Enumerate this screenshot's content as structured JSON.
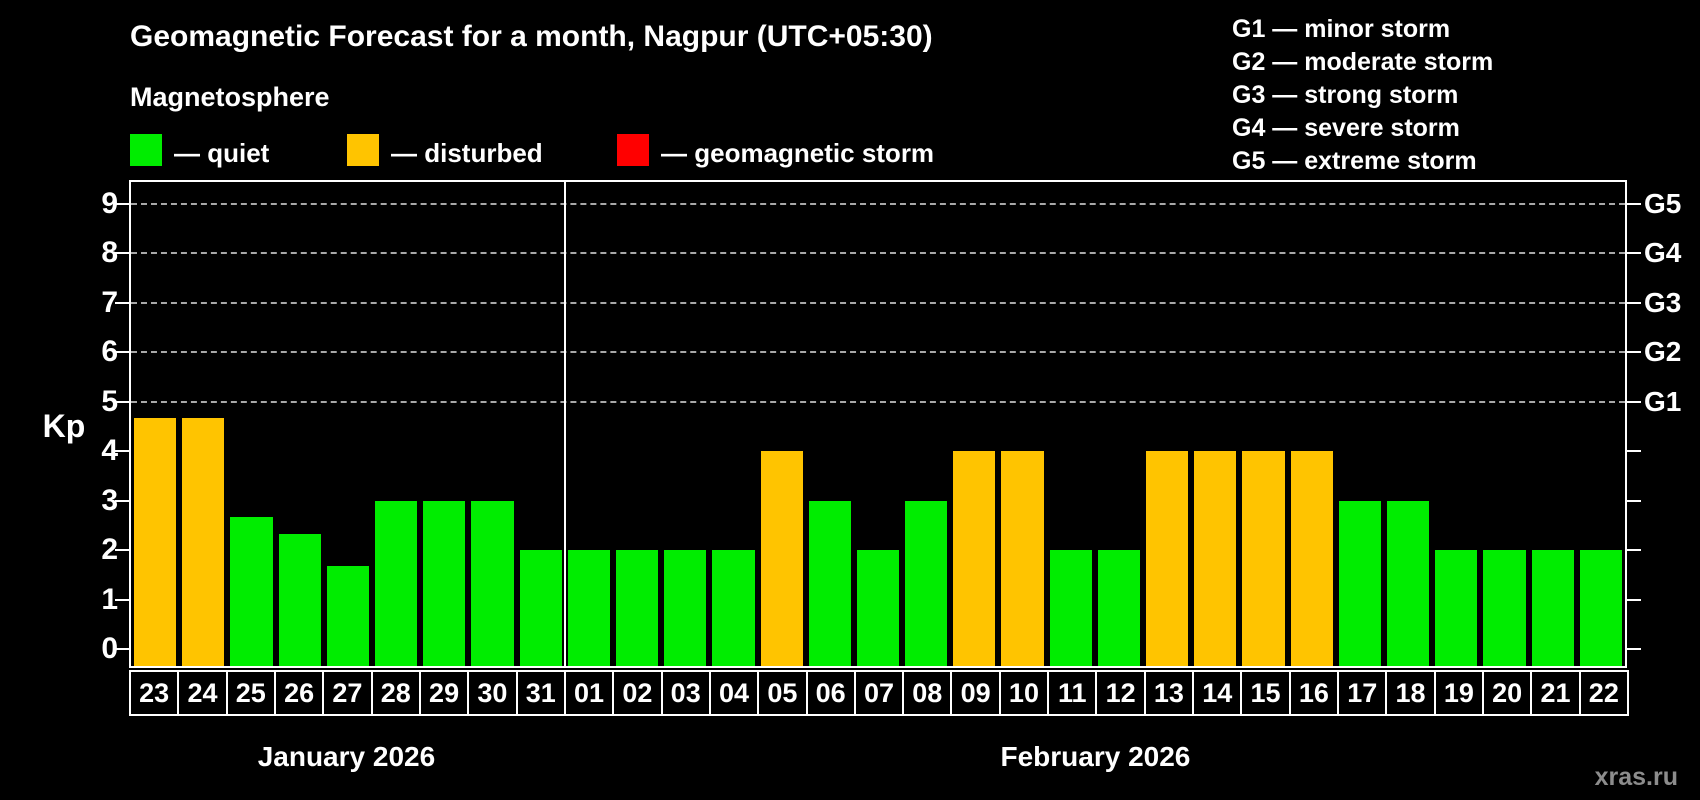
{
  "title": "Geomagnetic Forecast for a month, Nagpur (UTC+05:30)",
  "subtitle": "Magnetosphere",
  "legend": [
    {
      "key": "quiet",
      "label": "— quiet",
      "color": "#00ed00"
    },
    {
      "key": "disturbed",
      "label": "— disturbed",
      "color": "#ffc400"
    },
    {
      "key": "storm",
      "label": "— geomagnetic storm",
      "color": "#ff0000"
    }
  ],
  "storm_scale": [
    {
      "text": "G1 — minor storm"
    },
    {
      "text": "G2 — moderate storm"
    },
    {
      "text": "G3 — strong storm"
    },
    {
      "text": "G4 — severe storm"
    },
    {
      "text": "G5 — extreme storm"
    }
  ],
  "axis": {
    "left_label": "Kp",
    "y_ticks": [
      0,
      1,
      2,
      3,
      4,
      5,
      6,
      7,
      8,
      9
    ],
    "right_labels": [
      {
        "text": "G1",
        "kp": 5
      },
      {
        "text": "G2",
        "kp": 6
      },
      {
        "text": "G3",
        "kp": 7
      },
      {
        "text": "G4",
        "kp": 8
      },
      {
        "text": "G5",
        "kp": 9
      }
    ]
  },
  "watermark": "xras.ru",
  "colors": {
    "background": "#000000",
    "axis": "#ffffff",
    "grid": "#a8a8a8",
    "quiet": "#00ed00",
    "disturbed": "#ffc400",
    "storm": "#ff0000",
    "watermark": "#8c8c8c"
  },
  "chart_data": {
    "type": "bar",
    "title": "Geomagnetic Forecast for a month, Nagpur (UTC+05:30)",
    "xlabel": "",
    "ylabel": "Kp",
    "ylim": [
      0,
      9.4
    ],
    "grid": "horizontal dashed lines at Kp 5..9 only (storm levels G1..G5)",
    "legend_position": "top-left",
    "categories": [
      "23",
      "24",
      "25",
      "26",
      "27",
      "28",
      "29",
      "30",
      "31",
      "01",
      "02",
      "03",
      "04",
      "05",
      "06",
      "07",
      "08",
      "09",
      "10",
      "11",
      "12",
      "13",
      "14",
      "15",
      "16",
      "17",
      "18",
      "19",
      "20",
      "21",
      "22"
    ],
    "values": [
      4.67,
      4.67,
      2.67,
      2.33,
      1.67,
      3,
      3,
      3,
      2,
      2,
      2,
      2,
      2,
      4,
      3,
      2,
      3,
      4,
      4,
      2,
      2,
      4,
      4,
      4,
      4,
      3,
      3,
      2,
      2,
      2,
      2
    ],
    "statuses": [
      "disturbed",
      "disturbed",
      "quiet",
      "quiet",
      "quiet",
      "quiet",
      "quiet",
      "quiet",
      "quiet",
      "quiet",
      "quiet",
      "quiet",
      "quiet",
      "disturbed",
      "quiet",
      "quiet",
      "quiet",
      "disturbed",
      "disturbed",
      "quiet",
      "quiet",
      "disturbed",
      "disturbed",
      "disturbed",
      "disturbed",
      "quiet",
      "quiet",
      "quiet",
      "quiet",
      "quiet",
      "quiet"
    ],
    "months": [
      {
        "label": "January 2026",
        "short": "jan",
        "start_index": 0,
        "days": 9
      },
      {
        "label": "February 2026",
        "short": "feb",
        "start_index": 9,
        "days": 22
      }
    ]
  }
}
